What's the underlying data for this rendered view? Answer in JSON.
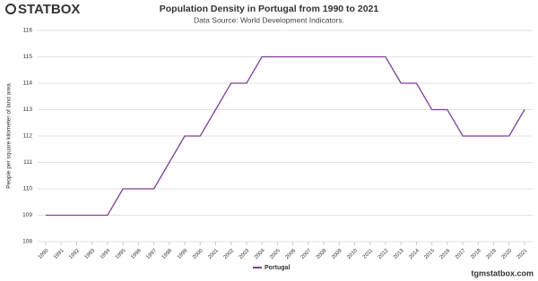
{
  "brand": "STATBOX",
  "footer": "tgmstatbox.com",
  "chart_data": {
    "type": "line",
    "title": "Population Density in Portugal from 1990 to 2021",
    "subtitle": "Data Source: World Development Indicators.",
    "y_label": "People per square kilometer of land area",
    "categories": [
      "1990",
      "1991",
      "1992",
      "1993",
      "1994",
      "1995",
      "1996",
      "1997",
      "1998",
      "1999",
      "2000",
      "2001",
      "2002",
      "2003",
      "2004",
      "2005",
      "2006",
      "2007",
      "2008",
      "2009",
      "2010",
      "2011",
      "2012",
      "2013",
      "2014",
      "2015",
      "2016",
      "2017",
      "2018",
      "2019",
      "2020",
      "2021"
    ],
    "series": [
      {
        "name": "Portugal",
        "color": "#7e3f98",
        "values": [
          109,
          109,
          109,
          109,
          109,
          110,
          110,
          110,
          111,
          112,
          112,
          113,
          114,
          114,
          115,
          115,
          115,
          115,
          115,
          115,
          115,
          115,
          115,
          114,
          114,
          113,
          113,
          112,
          112,
          112,
          112,
          113
        ]
      }
    ],
    "ylim": [
      108,
      116
    ],
    "yticks": [
      108,
      109,
      110,
      111,
      112,
      113,
      114,
      115,
      116
    ],
    "grid": true,
    "legend": "bottom"
  }
}
